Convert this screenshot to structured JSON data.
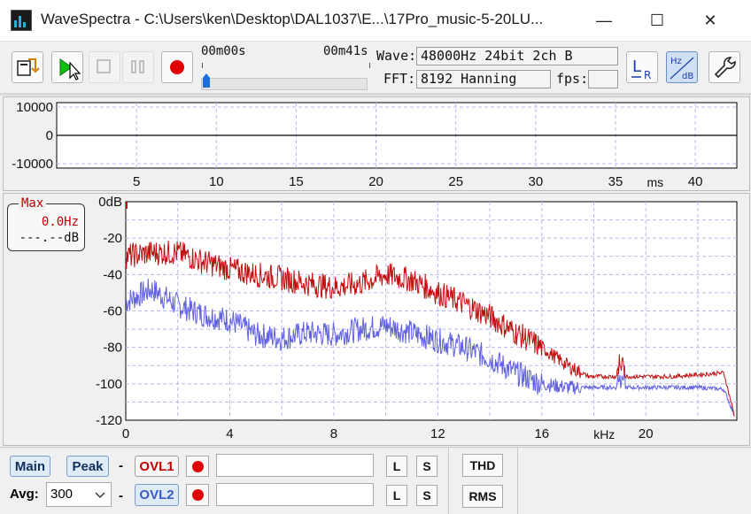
{
  "window": {
    "title": "WaveSpectra - C:\\Users\\ken\\Desktop\\DAL1037\\E...\\17Pro_music-5-20LU...",
    "minimize": "—",
    "maximize": "☐",
    "close": "✕"
  },
  "transport": {
    "time_start": "00m00s",
    "time_end": "00m41s",
    "progress": 0.0
  },
  "info": {
    "wave_label": "Wave:",
    "wave_value": "48000Hz 24bit 2ch B",
    "fft_label": "FFT:",
    "fft_value": "8192 Hanning",
    "fps_label": "fps:",
    "fps_value": ""
  },
  "toolbar_icons": [
    "open-file-icon",
    "play-icon",
    "stop-icon",
    "pause-icon",
    "record-icon",
    "lr-channel-icon",
    "hz-db-scale-icon",
    "wrench-icon"
  ],
  "waveform": {
    "y_ticks": [
      "10000",
      "0",
      "-10000"
    ],
    "x_ticks": [
      "5",
      "10",
      "15",
      "20",
      "25",
      "30",
      "35",
      "40"
    ],
    "x_unit": "ms"
  },
  "spectrum": {
    "y_ticks": [
      "0dB",
      "-20",
      "-40",
      "-60",
      "-80",
      "-100",
      "-120"
    ],
    "x_ticks": [
      "0",
      "4",
      "8",
      "12",
      "16",
      "20"
    ],
    "x_unit": "kHz",
    "peak_box": {
      "title": "Max",
      "freq": "0.0Hz",
      "level": "---.--dB"
    },
    "colors": {
      "red_series": "#c01010",
      "blue_series": "#6060e0",
      "grid": "#b8b8f0"
    }
  },
  "chart_data": {
    "type": "line",
    "xlabel": "kHz",
    "ylabel": "",
    "xlim": [
      0,
      23.5
    ],
    "ylim": [
      -120,
      0
    ],
    "series": [
      {
        "x": [
          0,
          1,
          2,
          3,
          4,
          5,
          6,
          7,
          8,
          9,
          10,
          11,
          12,
          13,
          14,
          15,
          16,
          17,
          17.8,
          18.5,
          19,
          20,
          21,
          22,
          23,
          23.4
        ],
        "values": [
          -30,
          -28,
          -28,
          -33,
          -37,
          -40,
          -42,
          -45,
          -47,
          -45,
          -40,
          -43,
          -50,
          -56,
          -63,
          -72,
          -80,
          -90,
          -96,
          -96,
          -96,
          -96,
          -96,
          -95,
          -94,
          -117
        ]
      },
      {
        "x": [
          0,
          1,
          2,
          3,
          4,
          5,
          6,
          7,
          8,
          9,
          10,
          11,
          12,
          13,
          14,
          15,
          16,
          17,
          17.8,
          18.5,
          19,
          20,
          21,
          22,
          23,
          23.4
        ],
        "values": [
          -55,
          -48,
          -57,
          -62,
          -65,
          -73,
          -75,
          -72,
          -73,
          -70,
          -68,
          -72,
          -76,
          -80,
          -86,
          -94,
          -100,
          -102,
          -102,
          -102,
          -102,
          -102,
          -102,
          -102,
          -103,
          -117
        ]
      }
    ]
  },
  "bottom": {
    "main": "Main",
    "peak": "Peak",
    "avg_label": "Avg:",
    "avg_value": "300",
    "dash": "-",
    "ovl1": "OVL1",
    "ovl2": "OVL2",
    "l": "L",
    "s": "S",
    "thd": "THD",
    "rms": "RMS"
  }
}
